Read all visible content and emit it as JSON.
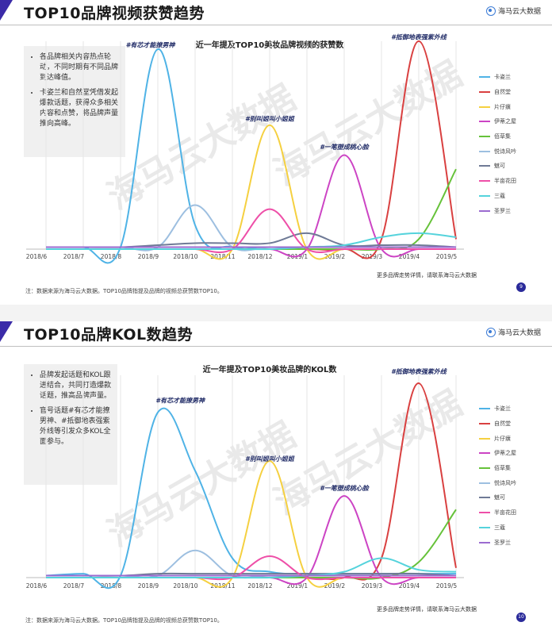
{
  "slides": [
    {
      "page_title": "TOP10品牌视频获赞趋势",
      "logo_text": "海马云大数据",
      "watermark": "海马云大数据",
      "insights": [
        "各品牌相关内容热点轮动，不同时期有不同品牌到达峰值。",
        "卡姿兰和自然堂凭借发起爆款话题，获得众多相关内容和点赞，将品牌声量推向高峰。"
      ],
      "more_text": "更多品牌走势详情，请联系海马云大数据",
      "note": "注：数据来源为海马云大数据。TOP10品牌指提及品牌的视频总获赞数TOP10。",
      "page_number": "9"
    },
    {
      "page_title": "TOP10品牌KOL数趋势",
      "logo_text": "海马云大数据",
      "watermark": "海马云大数据",
      "insights": [
        "品牌发起话题和KOL跟进结合，共同打造爆款话题，推高品牌声量。",
        "官号话题#有芯才能撩男神、#抵御地表强紫外线等引发众多KOL全面参与。"
      ],
      "more_text": "更多品牌走势详情，请联系海马云大数据",
      "note": "注：数据来源为海马云大数据。TOP10品牌指提及品牌的视频总获赞数TOP10。",
      "page_number": "10"
    }
  ],
  "chart_data": [
    {
      "type": "line",
      "title": "近一年提及TOP10美妆品牌视频的获赞数",
      "xlabel": "",
      "ylabel": "",
      "categories": [
        "2018/6",
        "2018/7",
        "2018/8",
        "2018/9",
        "2018/10",
        "2018/11",
        "2018/12",
        "2019/1",
        "2019/2",
        "2019/3",
        "2019/4",
        "2019/5"
      ],
      "ylim": [
        0,
        100
      ],
      "grid": "vertical",
      "legend": "right",
      "annotations": [
        {
          "text": "#有芯才能撩男神",
          "x": 2.8,
          "y": 101
        },
        {
          "text": "#别叫姐叫小姐姐",
          "x": 6.0,
          "y": 64
        },
        {
          "text": "#一笔塑成桃心脸",
          "x": 8.0,
          "y": 50
        },
        {
          "text": "#抵御地表强紫外线",
          "x": 10.0,
          "y": 105
        }
      ],
      "series": [
        {
          "name": "卡姿兰",
          "color": "#4fb3e6",
          "values": [
            1,
            1,
            1,
            100,
            12,
            1,
            1,
            1,
            1,
            1,
            1,
            1
          ]
        },
        {
          "name": "自然堂",
          "color": "#d94040",
          "values": [
            0,
            0,
            0,
            0,
            0,
            0,
            0,
            0,
            0,
            5,
            104,
            5
          ]
        },
        {
          "name": "片仔癀",
          "color": "#f5d040",
          "values": [
            0,
            0,
            0,
            0,
            0,
            0,
            62,
            0,
            0,
            0,
            0,
            0
          ]
        },
        {
          "name": "伊蒂之屋",
          "color": "#cc44c4",
          "values": [
            0,
            0,
            0,
            0,
            0,
            0,
            0,
            0,
            47,
            0,
            0,
            0
          ]
        },
        {
          "name": "佰草集",
          "color": "#66c23a",
          "values": [
            0,
            0,
            0,
            0,
            0,
            0,
            0,
            0,
            0,
            0,
            5,
            40
          ]
        },
        {
          "name": "悦诗风吟",
          "color": "#9dbfe0",
          "values": [
            1,
            1,
            1,
            1,
            22,
            1,
            1,
            1,
            1,
            1,
            1,
            1
          ]
        },
        {
          "name": "魅可",
          "color": "#6f7a96",
          "values": [
            1,
            1,
            1,
            2,
            3,
            3,
            3,
            8,
            2,
            2,
            2,
            1
          ]
        },
        {
          "name": "半亩花田",
          "color": "#ee4fa8",
          "values": [
            0,
            0,
            0,
            0,
            0,
            0,
            20,
            0,
            0,
            0,
            0,
            0
          ]
        },
        {
          "name": "三蔻",
          "color": "#55d3dc",
          "values": [
            0,
            0,
            0,
            0,
            0,
            0,
            0,
            1,
            2,
            6,
            8,
            6
          ]
        },
        {
          "name": "圣罗兰",
          "color": "#9b6bd0",
          "values": [
            1,
            1,
            1,
            1,
            1,
            1,
            1,
            1,
            1,
            1,
            1,
            1
          ]
        }
      ]
    },
    {
      "type": "line",
      "title": "近一年提及TOP10美妆品牌的KOL数",
      "xlabel": "",
      "ylabel": "",
      "categories": [
        "2018/6",
        "2018/7",
        "2018/8",
        "2018/9",
        "2018/10",
        "2018/11",
        "2018/12",
        "2019/1",
        "2019/2",
        "2019/3",
        "2019/4",
        "2019/5"
      ],
      "ylim": [
        0,
        100
      ],
      "grid": "vertical",
      "legend": "right",
      "annotations": [
        {
          "text": "#有芯才能撩男神",
          "x": 3.6,
          "y": 90
        },
        {
          "text": "#别叫姐叫小姐姐",
          "x": 6.0,
          "y": 60
        },
        {
          "text": "#一笔塑成桃心脸",
          "x": 8.0,
          "y": 45
        },
        {
          "text": "#抵御地表强紫外线",
          "x": 10.0,
          "y": 105
        }
      ],
      "series": [
        {
          "name": "卡姿兰",
          "color": "#4fb3e6",
          "values": [
            1,
            2,
            1,
            85,
            55,
            10,
            3,
            2,
            2,
            2,
            2,
            2
          ]
        },
        {
          "name": "自然堂",
          "color": "#d94040",
          "values": [
            0,
            0,
            0,
            0,
            0,
            0,
            0,
            0,
            0,
            10,
            100,
            5
          ]
        },
        {
          "name": "片仔癀",
          "color": "#f5d040",
          "values": [
            0,
            0,
            0,
            0,
            0,
            0,
            60,
            0,
            0,
            0,
            0,
            0
          ]
        },
        {
          "name": "伊蒂之屋",
          "color": "#cc44c4",
          "values": [
            0,
            0,
            0,
            0,
            0,
            0,
            0,
            0,
            42,
            0,
            0,
            0
          ]
        },
        {
          "name": "佰草集",
          "color": "#66c23a",
          "values": [
            0,
            0,
            0,
            0,
            0,
            0,
            0,
            0,
            0,
            0,
            8,
            35
          ]
        },
        {
          "name": "悦诗风吟",
          "color": "#9dbfe0",
          "values": [
            1,
            1,
            1,
            1,
            14,
            1,
            1,
            1,
            1,
            1,
            1,
            1
          ]
        },
        {
          "name": "魅可",
          "color": "#6f7a96",
          "values": [
            1,
            1,
            1,
            2,
            2,
            2,
            2,
            2,
            2,
            2,
            2,
            1
          ]
        },
        {
          "name": "半亩花田",
          "color": "#ee4fa8",
          "values": [
            0,
            0,
            0,
            0,
            0,
            0,
            11,
            0,
            0,
            0,
            0,
            0
          ]
        },
        {
          "name": "三蔻",
          "color": "#55d3dc",
          "values": [
            0,
            0,
            0,
            0,
            0,
            0,
            0,
            1,
            3,
            10,
            4,
            3
          ]
        },
        {
          "name": "圣罗兰",
          "color": "#9b6bd0",
          "values": [
            1,
            1,
            1,
            1,
            1,
            1,
            1,
            1,
            1,
            1,
            1,
            1
          ]
        }
      ]
    }
  ]
}
